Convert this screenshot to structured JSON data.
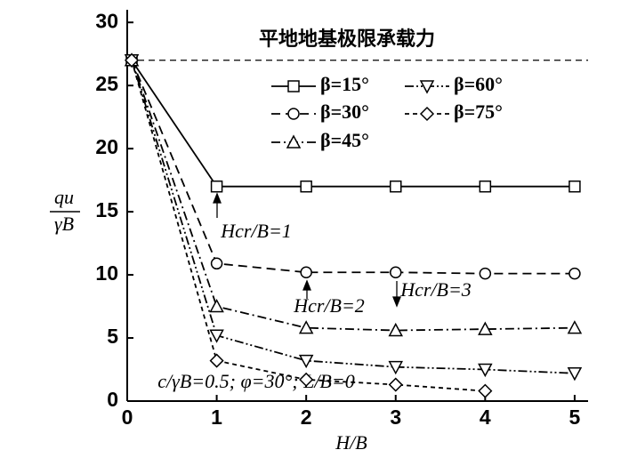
{
  "chart_data": {
    "type": "line",
    "title": "平地地基极限承载力",
    "xlabel": "H/B",
    "ylabel": {
      "numerator": "qu",
      "denominator": "γB"
    },
    "xlim": [
      0,
      5.15
    ],
    "ylim": [
      0,
      31
    ],
    "xticks": [
      0,
      1,
      2,
      3,
      4,
      5
    ],
    "yticks": [
      0,
      5,
      10,
      15,
      20,
      25,
      30
    ],
    "reference_line": 27,
    "series": [
      {
        "name": "β=15°",
        "color": "#000000",
        "marker": "square",
        "dash": "",
        "x": [
          0.05,
          1,
          2,
          3,
          4,
          5
        ],
        "values": [
          27,
          17,
          17,
          17,
          17,
          17
        ]
      },
      {
        "name": "β=30°",
        "color": "#000000",
        "marker": "circle",
        "dash": "10,6",
        "x": [
          0.05,
          1,
          2,
          3,
          4,
          5
        ],
        "values": [
          27,
          10.9,
          10.2,
          10.2,
          10.1,
          10.1
        ]
      },
      {
        "name": "β=45°",
        "color": "#000000",
        "marker": "triangle",
        "dash": "10,4,2,4",
        "x": [
          0.05,
          1,
          2,
          3,
          4,
          5
        ],
        "values": [
          27,
          7.5,
          5.8,
          5.6,
          5.7,
          5.8
        ]
      },
      {
        "name": "β=60°",
        "color": "#000000",
        "marker": "triangle-down",
        "dash": "10,3,2,3,2,3",
        "x": [
          0.05,
          1,
          2,
          3,
          4,
          5
        ],
        "values": [
          27,
          5.2,
          3.2,
          2.7,
          2.5,
          2.2
        ]
      },
      {
        "name": "β=75°",
        "color": "#000000",
        "marker": "diamond",
        "dash": "5,4",
        "x": [
          0.05,
          1,
          2,
          3,
          4
        ],
        "values": [
          27,
          3.2,
          1.7,
          1.3,
          0.8
        ]
      }
    ],
    "annotations": [
      "Hcr/B=1",
      "Hcr/B=2",
      "Hcr/B=3",
      "c/γB=0.5; φ=30°; L/B=0"
    ]
  }
}
